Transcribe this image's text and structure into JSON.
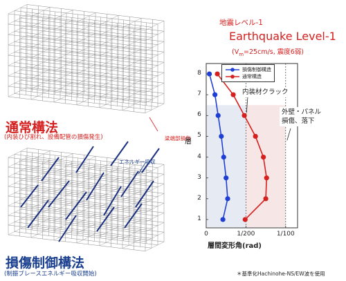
{
  "left": {
    "conventional_title": "通常構法",
    "conventional_subtitle": "(内装ひび割れ、設備配管の損傷発生)",
    "beam_damage_label": "梁端部損傷",
    "energy_label": "エネルギー吸収",
    "controlled_title": "損傷制御構法",
    "controlled_subtitle": "(制振ブレースエネルギー吸収開始)"
  },
  "header": {
    "level_jp": "地震レベル-1",
    "level_en": "Earthquake Level-1",
    "condition_prefix": "(V",
    "condition_subscript": "m",
    "condition_suffix": "=25cm/s, 震度6弱)"
  },
  "annotations": {
    "interior_crack": "内装材クラック",
    "exterior_line1": "外壁・パネル",
    "exterior_line2": "損傷、落下"
  },
  "footnote": "＊基準化Hachinohe-NS/EW波を使用",
  "colors": {
    "red": "#d4211f",
    "blue": "#1f3fd4",
    "navy": "#1a3f8f",
    "frame": "#8a8a8a"
  },
  "chart_data": {
    "type": "line",
    "ylabel": "層",
    "xlabel": "層間変形角(rad)",
    "x_tick_labels": [
      "0",
      "1/200",
      "1/100"
    ],
    "x_tick_values": [
      0,
      0.005,
      0.01
    ],
    "xlim": [
      0,
      0.0115
    ],
    "y_ticks": [
      1,
      2,
      3,
      4,
      5,
      6,
      7,
      8
    ],
    "ylim": [
      0.6,
      8.5
    ],
    "grid": false,
    "legend_position": "top-left",
    "series": [
      {
        "name": "損傷制御構造",
        "color": "#1f3fd4",
        "floors": [
          1,
          2,
          3,
          4,
          5,
          6,
          7,
          8
        ],
        "values": [
          0.0021,
          0.0027,
          0.0025,
          0.0022,
          0.0019,
          0.0015,
          0.0011,
          0.0004
        ]
      },
      {
        "name": "通常構造",
        "color": "#d4211f",
        "floors": [
          1,
          2,
          3,
          4,
          5,
          6,
          7,
          8
        ],
        "values": [
          0.0049,
          0.0075,
          0.0076,
          0.0072,
          0.0062,
          0.0048,
          0.0034,
          0.0014
        ]
      }
    ]
  }
}
